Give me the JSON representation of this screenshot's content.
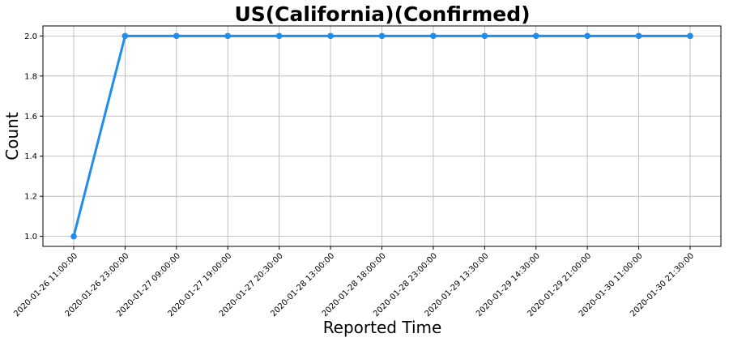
{
  "chart_data": {
    "type": "line",
    "title": "US(California)(Confirmed)",
    "xlabel": "Reported Time",
    "ylabel": "Count",
    "categories": [
      "2020-01-26 11:00:00",
      "2020-01-26 23:00:00",
      "2020-01-27 09:00:00",
      "2020-01-27 19:00:00",
      "2020-01-27 20:30:00",
      "2020-01-28 13:00:00",
      "2020-01-28 18:00:00",
      "2020-01-28 23:00:00",
      "2020-01-29 13:30:00",
      "2020-01-29 14:30:00",
      "2020-01-29 21:00:00",
      "2020-01-30 11:00:00",
      "2020-01-30 21:30:00"
    ],
    "values": [
      1,
      2,
      2,
      2,
      2,
      2,
      2,
      2,
      2,
      2,
      2,
      2,
      2
    ],
    "ylim": [
      0.95,
      2.05
    ],
    "yticks": [
      "1.0",
      "1.2",
      "1.4",
      "1.6",
      "1.8",
      "2.0"
    ],
    "grid": true,
    "line_color": "#1f8ded"
  }
}
